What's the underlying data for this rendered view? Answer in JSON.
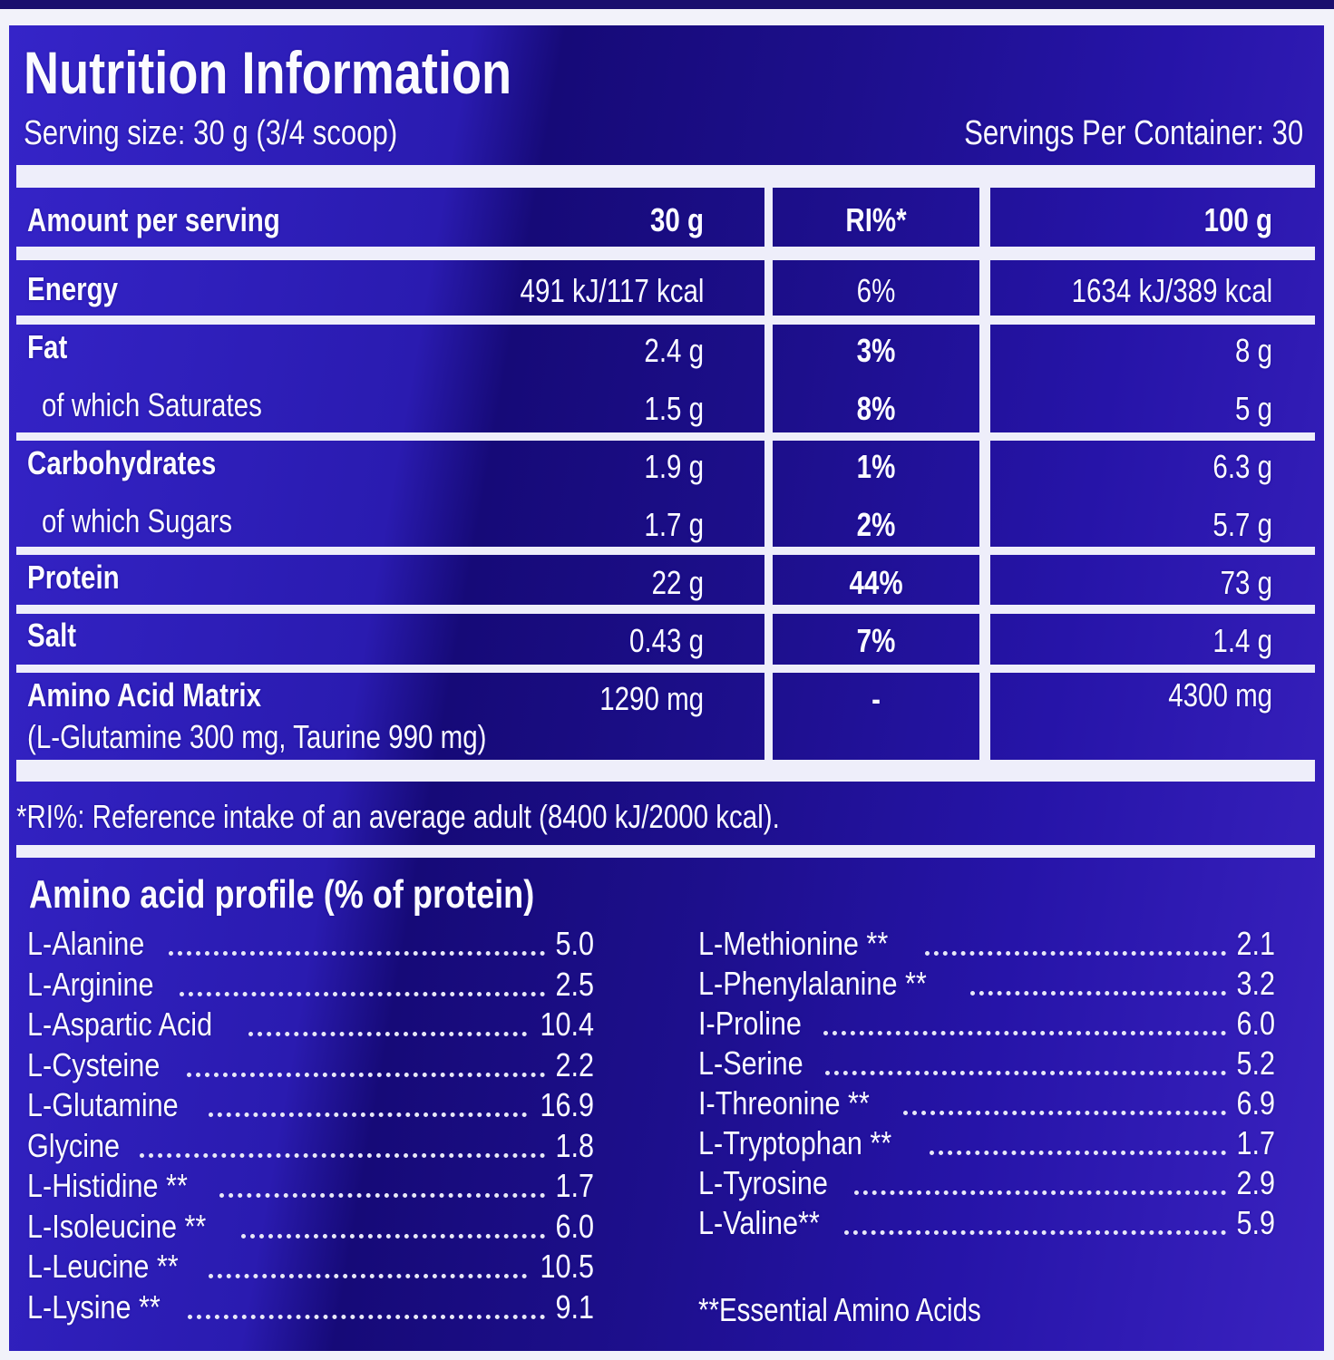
{
  "header": {
    "title": "Nutrition Information",
    "serving_size": "Serving size: 30 g (3/4 scoop)",
    "servings_per_container": "Servings Per Container: 30"
  },
  "table": {
    "columns": [
      "Amount per serving",
      "30 g",
      "RI%*",
      "100 g"
    ],
    "rows": [
      {
        "name": "Energy",
        "per_serving": "491 kJ/117 kcal",
        "ri": "6%",
        "per_100g": "1634 kJ/389 kcal"
      },
      {
        "name": "Fat",
        "per_serving": "2.4 g",
        "ri": "3%",
        "per_100g": "8 g"
      },
      {
        "name": "of which Saturates",
        "per_serving": "1.5 g",
        "ri": "8%",
        "per_100g": "5 g"
      },
      {
        "name": "Carbohydrates",
        "per_serving": "1.9 g",
        "ri": "1%",
        "per_100g": "6.3 g"
      },
      {
        "name": "of which Sugars",
        "per_serving": "1.7 g",
        "ri": "2%",
        "per_100g": "5.7 g"
      },
      {
        "name": "Protein",
        "per_serving": "22 g",
        "ri": "44%",
        "per_100g": "73 g"
      },
      {
        "name": "Salt",
        "per_serving": "0.43 g",
        "ri": "7%",
        "per_100g": "1.4 g"
      },
      {
        "name": "Amino Acid Matrix",
        "sub": "(L-Glutamine 300 mg, Taurine 990 mg)",
        "per_serving": "1290 mg",
        "ri": "-",
        "per_100g": "4300 mg"
      }
    ]
  },
  "footnote": "*RI%: Reference intake of an average adult (8400 kJ/2000 kcal).",
  "amino_profile": {
    "title": "Amino acid profile (% of protein)",
    "left": [
      {
        "name": "L-Alanine",
        "value": "5.0"
      },
      {
        "name": "L-Arginine",
        "value": "2.5"
      },
      {
        "name": "L-Aspartic Acid",
        "value": "10.4"
      },
      {
        "name": "L-Cysteine",
        "value": "2.2"
      },
      {
        "name": "L-Glutamine",
        "value": "16.9"
      },
      {
        "name": "Glycine",
        "value": "1.8"
      },
      {
        "name": "L-Histidine **",
        "value": "1.7"
      },
      {
        "name": "L-Isoleucine **",
        "value": "6.0"
      },
      {
        "name": "L-Leucine **",
        "value": "10.5"
      },
      {
        "name": "L-Lysine **",
        "value": "9.1"
      }
    ],
    "right": [
      {
        "name": "L-Methionine **",
        "value": "2.1"
      },
      {
        "name": "L-Phenylalanine **",
        "value": "3.2"
      },
      {
        "name": "I-Proline",
        "value": "6.0"
      },
      {
        "name": "L-Serine",
        "value": "5.2"
      },
      {
        "name": "I-Threonine **",
        "value": "6.9"
      },
      {
        "name": "L-Tryptophan **",
        "value": "1.7"
      },
      {
        "name": "L-Tyrosine",
        "value": "2.9"
      },
      {
        "name": "L-Valine**",
        "value": "5.9"
      }
    ],
    "note": "**Essential Amino Acids"
  },
  "colors": {
    "background": "#2a1bb0",
    "lines": "#eeeefa",
    "text": "#fbfbff"
  }
}
